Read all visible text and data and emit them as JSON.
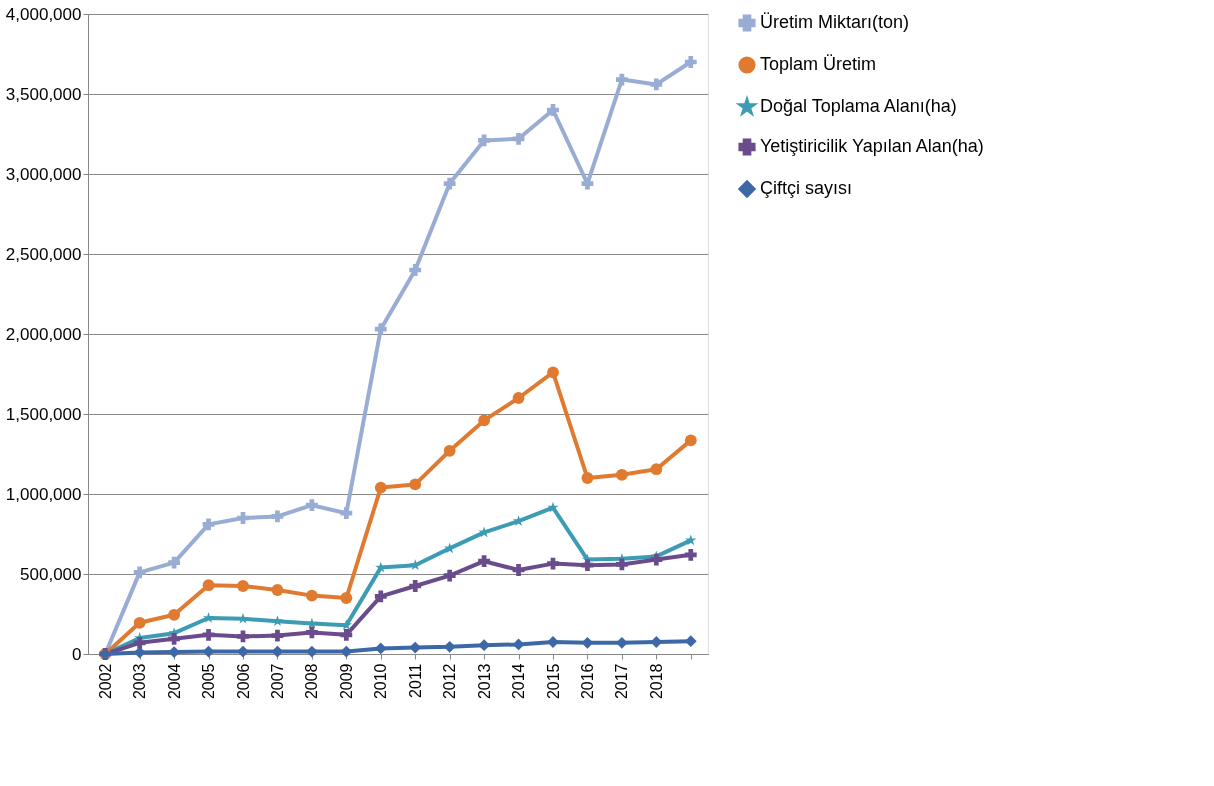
{
  "chart_data": {
    "type": "line",
    "categories": [
      "2002",
      "2003",
      "2004",
      "2005",
      "2006",
      "2007",
      "2008",
      "2009",
      "2010",
      "2011",
      "2012",
      "2013",
      "2014",
      "2015",
      "2016",
      "2017",
      "2018",
      null
    ],
    "series": [
      {
        "name": "Üretim Miktarı(ton)",
        "color": "#98acd4",
        "marker": "cross",
        "values": [
          0,
          510000,
          571000,
          810000,
          850000,
          860000,
          930000,
          880000,
          2030000,
          2400000,
          2940000,
          3210000,
          3220000,
          3400000,
          2940000,
          3590000,
          3560000,
          3700000
        ]
      },
      {
        "name": "Toplam  Üretim",
        "color": "#e07a30",
        "marker": "circle",
        "values": [
          0,
          195000,
          245000,
          430000,
          425000,
          400000,
          365000,
          350000,
          1040000,
          1060000,
          1270000,
          1460000,
          1600000,
          1760000,
          1100000,
          1120000,
          1155000,
          1335000
        ]
      },
      {
        "name": "Doğal Toplama Alanı(ha)",
        "color": "#3d9cb3",
        "marker": "star",
        "values": [
          0,
          100000,
          130000,
          225000,
          220000,
          205000,
          190000,
          180000,
          540000,
          555000,
          660000,
          760000,
          830000,
          915000,
          590000,
          595000,
          610000,
          710000
        ]
      },
      {
        "name": "Yetiştiricilik Yapılan Alan(ha)",
        "color": "#6a4c8c",
        "marker": "cross",
        "values": [
          0,
          70000,
          95000,
          120000,
          110000,
          115000,
          135000,
          120000,
          360000,
          425000,
          490000,
          580000,
          525000,
          565000,
          555000,
          560000,
          590000,
          620000
        ]
      },
      {
        "name": "Çiftçi sayısı",
        "color": "#3c68a8",
        "marker": "diamond",
        "values": [
          0,
          10000,
          12000,
          15000,
          15000,
          15000,
          15000,
          15000,
          35000,
          40000,
          45000,
          55000,
          60000,
          75000,
          70000,
          70000,
          75000,
          80000
        ]
      }
    ],
    "ylim": [
      0,
      4000000
    ],
    "yticks": [
      {
        "value": 0,
        "label": "0"
      },
      {
        "value": 500000,
        "label": "500,000"
      },
      {
        "value": 1000000,
        "label": "1,000,000"
      },
      {
        "value": 1500000,
        "label": "1,500,000"
      },
      {
        "value": 2000000,
        "label": "2,000,000"
      },
      {
        "value": 2500000,
        "label": "2,500,000"
      },
      {
        "value": 3000000,
        "label": "3,000,000"
      },
      {
        "value": 3500000,
        "label": "3,500,000"
      },
      {
        "value": 4000000,
        "label": "4,000,000"
      }
    ],
    "grid": "y",
    "legend": "right",
    "line_style": "solid"
  }
}
